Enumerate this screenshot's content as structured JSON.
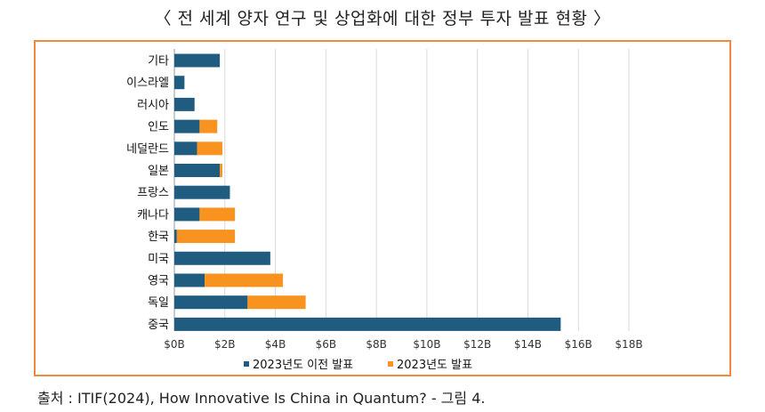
{
  "title": "〈 전 세계 양자 연구 및 상업화에 대한 정부 투자 발표 현황 〉",
  "source": "출처 : ITIF(2024), How Innovative Is China in Quantum? - 그림 4.",
  "chart_data": {
    "type": "bar",
    "orientation": "horizontal",
    "stacked": true,
    "categories": [
      "기타",
      "이스라엘",
      "러시아",
      "인도",
      "네덜란드",
      "일본",
      "프랑스",
      "캐나다",
      "한국",
      "미국",
      "영국",
      "독일",
      "중국"
    ],
    "series": [
      {
        "name": "2023년도 이전 발표",
        "color": "#1f5c7f",
        "values": [
          1.8,
          0.4,
          0.8,
          1.0,
          0.9,
          1.8,
          2.2,
          1.0,
          0.1,
          3.8,
          1.2,
          2.9,
          15.3
        ]
      },
      {
        "name": "2023년도 발표",
        "color": "#f7931e",
        "values": [
          0,
          0,
          0,
          0.7,
          1.0,
          0.1,
          0,
          1.4,
          2.3,
          0,
          3.1,
          2.3,
          0
        ]
      }
    ],
    "xlim": [
      0,
      18
    ],
    "xticks": [
      "$0B",
      "$2B",
      "$4B",
      "$6B",
      "$8B",
      "$10B",
      "$12B",
      "$14B",
      "$16B",
      "$18B"
    ],
    "xlabel": "",
    "ylabel": "",
    "grid": "vertical",
    "legend_position": "bottom"
  }
}
